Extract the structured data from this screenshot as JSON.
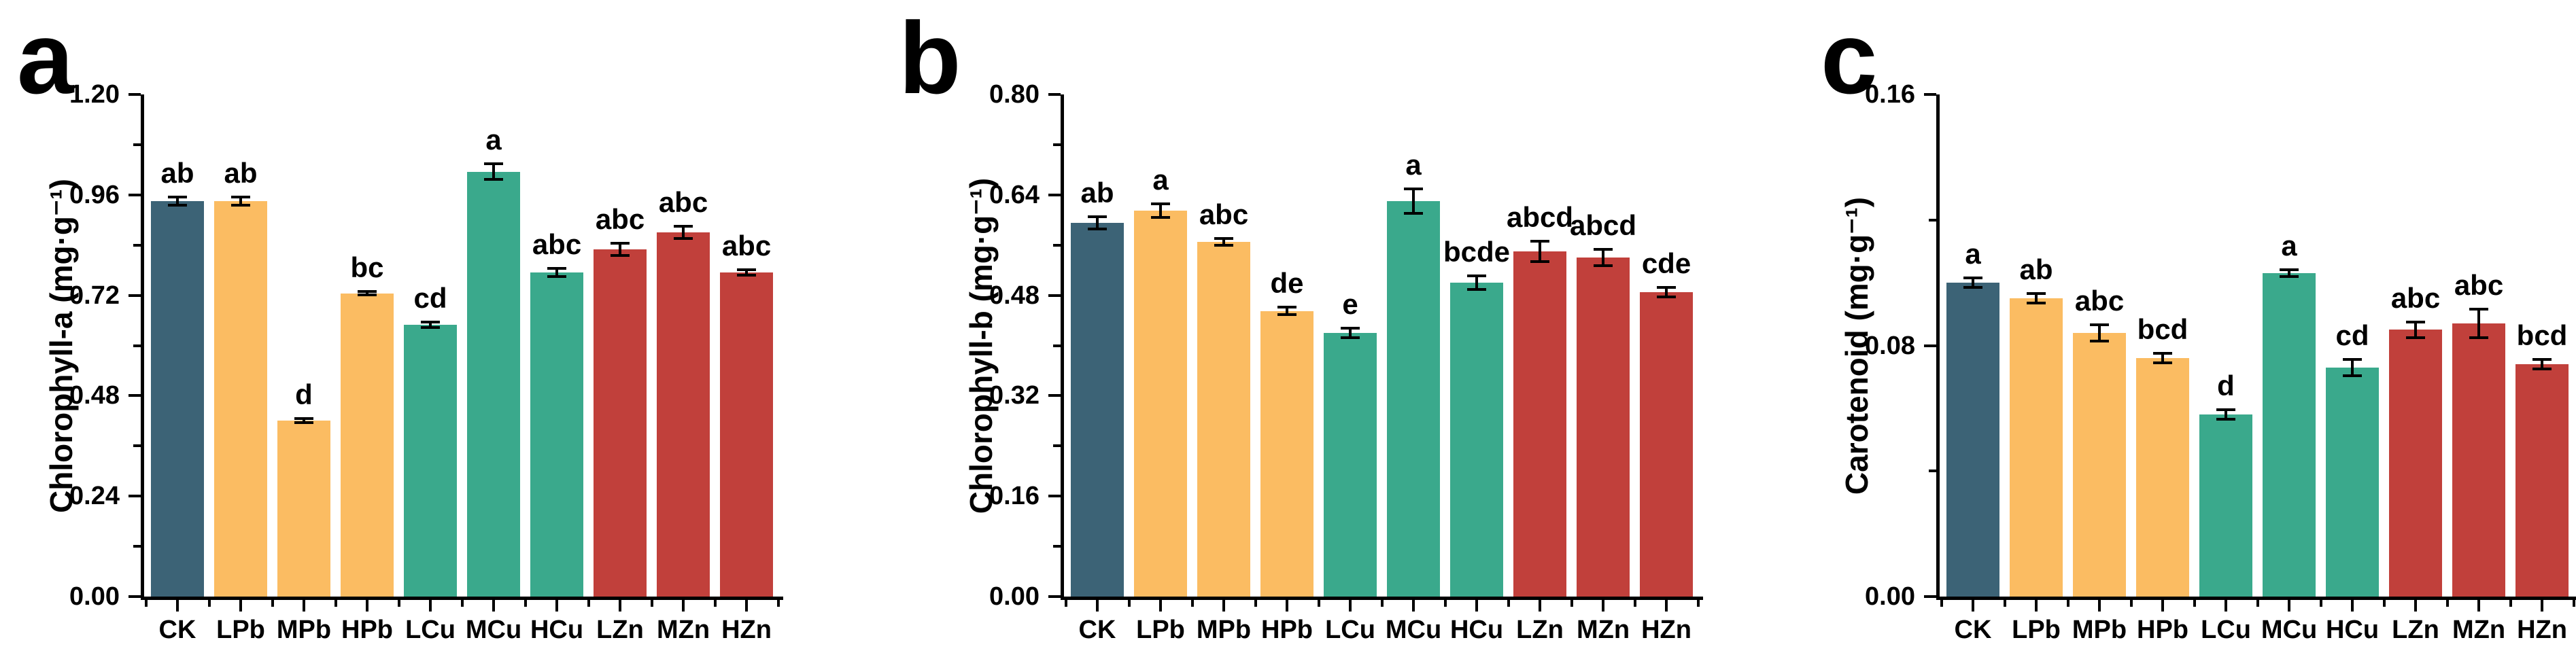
{
  "figure": {
    "panel_labels": [
      "a",
      "b",
      "c"
    ],
    "treatment_groups": [
      "CK",
      "Pb",
      "Cu",
      "Zn"
    ]
  },
  "group_colors": {
    "CK": "#3C6376",
    "Pb": "#FBBC62",
    "Cu": "#3AA98C",
    "Zn": "#C1403B"
  },
  "style": {
    "axis_color": "#000000",
    "background": "#FFFFFF",
    "text_color": "#000000"
  },
  "chart_data": [
    {
      "type": "bar",
      "panel_label": "a",
      "ylabel": "Chlorophyll-a (mg·g⁻¹)",
      "xlabel": "",
      "ylim": [
        0,
        1.2
      ],
      "ytick_step": 0.24,
      "yminor_step": 0.12,
      "ytick_labels": [
        "0.00",
        "0.24",
        "0.48",
        "0.72",
        "0.96",
        "1.20"
      ],
      "grid": false,
      "legend": "none",
      "categories": [
        "CK",
        "LPb",
        "MPb",
        "HPb",
        "LCu",
        "MCu",
        "HCu",
        "LZn",
        "MZn",
        "HZn"
      ],
      "bar_groups": [
        "CK",
        "Pb",
        "Pb",
        "Pb",
        "Cu",
        "Cu",
        "Cu",
        "Zn",
        "Zn",
        "Zn"
      ],
      "values": [
        0.945,
        0.945,
        0.42,
        0.725,
        0.65,
        1.015,
        0.775,
        0.83,
        0.87,
        0.775
      ],
      "errors": [
        0.013,
        0.013,
        0.008,
        0.008,
        0.01,
        0.022,
        0.013,
        0.018,
        0.018,
        0.01
      ],
      "sig_letters": [
        "ab",
        "ab",
        "d",
        "bc",
        "cd",
        "a",
        "abc",
        "abc",
        "abc",
        "abc"
      ]
    },
    {
      "type": "bar",
      "panel_label": "b",
      "ylabel": "Chlorophyll-b (mg·g⁻¹)",
      "xlabel": "",
      "ylim": [
        0,
        0.8
      ],
      "ytick_step": 0.16,
      "yminor_step": 0.08,
      "ytick_labels": [
        "0.00",
        "0.16",
        "0.32",
        "0.48",
        "0.64",
        "0.80"
      ],
      "grid": false,
      "legend": "none",
      "categories": [
        "CK",
        "LPb",
        "MPb",
        "HPb",
        "LCu",
        "MCu",
        "HCu",
        "LZn",
        "MZn",
        "HZn"
      ],
      "bar_groups": [
        "CK",
        "Pb",
        "Pb",
        "Pb",
        "Cu",
        "Cu",
        "Cu",
        "Zn",
        "Zn",
        "Zn"
      ],
      "values": [
        0.595,
        0.615,
        0.565,
        0.455,
        0.42,
        0.63,
        0.5,
        0.55,
        0.54,
        0.485
      ],
      "errors": [
        0.012,
        0.013,
        0.008,
        0.008,
        0.01,
        0.022,
        0.013,
        0.018,
        0.015,
        0.01
      ],
      "sig_letters": [
        "ab",
        "a",
        "abc",
        "de",
        "e",
        "a",
        "bcde",
        "abcd",
        "abcd",
        "cde"
      ]
    },
    {
      "type": "bar",
      "panel_label": "c",
      "ylabel": "Carotenoid (mg·g⁻¹)",
      "xlabel": "",
      "ylim": [
        0,
        0.16
      ],
      "ytick_step": 0.08,
      "yminor_step": 0.04,
      "ytick_labels": [
        "0.00",
        "0.08",
        "0.16"
      ],
      "grid": false,
      "legend": "none",
      "categories": [
        "CK",
        "LPb",
        "MPb",
        "HPb",
        "LCu",
        "MCu",
        "HCu",
        "LZn",
        "MZn",
        "HZn"
      ],
      "bar_groups": [
        "CK",
        "Pb",
        "Pb",
        "Pb",
        "Cu",
        "Cu",
        "Cu",
        "Zn",
        "Zn",
        "Zn"
      ],
      "values": [
        0.1,
        0.095,
        0.084,
        0.076,
        0.058,
        0.103,
        0.073,
        0.085,
        0.087,
        0.074
      ],
      "errors": [
        0.002,
        0.002,
        0.003,
        0.002,
        0.002,
        0.0015,
        0.003,
        0.003,
        0.005,
        0.002
      ],
      "sig_letters": [
        "a",
        "ab",
        "abc",
        "bcd",
        "d",
        "a",
        "cd",
        "abc",
        "abc",
        "bcd"
      ]
    }
  ]
}
